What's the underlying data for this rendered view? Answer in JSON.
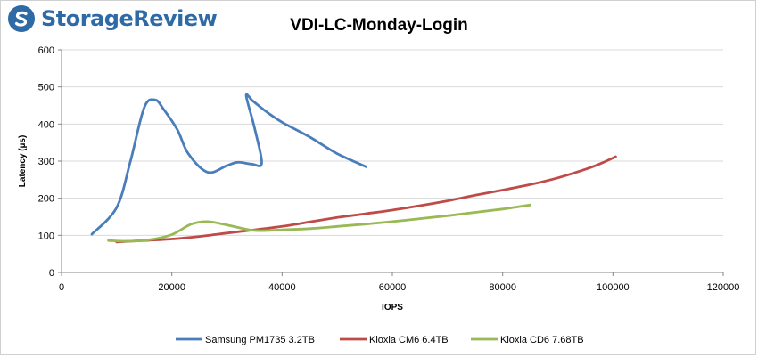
{
  "brand": {
    "name": "StorageReview",
    "icon": "storagereview-logo-icon",
    "color": "#2e6aa6"
  },
  "chart_data": {
    "type": "line",
    "title": "VDI-LC-Monday-Login",
    "xlabel": "IOPS",
    "ylabel": "Latency (µs)",
    "xlim": [
      0,
      120000
    ],
    "ylim": [
      0,
      600
    ],
    "x_ticks": [
      0,
      20000,
      40000,
      60000,
      80000,
      100000,
      120000
    ],
    "y_ticks": [
      0,
      100,
      200,
      300,
      400,
      500,
      600
    ],
    "grid": "horizontal",
    "legend_position": "bottom",
    "series": [
      {
        "name": "Samsung PM1735 3.2TB",
        "color": "#4a7ebb",
        "points": [
          [
            5500,
            103
          ],
          [
            10000,
            175
          ],
          [
            12500,
            300
          ],
          [
            15000,
            445
          ],
          [
            17000,
            465
          ],
          [
            18500,
            440
          ],
          [
            21000,
            385
          ],
          [
            23000,
            320
          ],
          [
            26500,
            270
          ],
          [
            30000,
            288
          ],
          [
            32000,
            297
          ],
          [
            34500,
            292
          ],
          [
            36300,
            295
          ],
          [
            35000,
            390
          ],
          [
            33500,
            476
          ],
          [
            34700,
            462
          ],
          [
            37000,
            435
          ],
          [
            40000,
            405
          ],
          [
            45000,
            365
          ],
          [
            50000,
            320
          ],
          [
            55200,
            285
          ]
        ]
      },
      {
        "name": "Kioxia CM6 6.4TB",
        "color": "#be4b48",
        "points": [
          [
            10000,
            82
          ],
          [
            15000,
            86
          ],
          [
            20000,
            90
          ],
          [
            25000,
            97
          ],
          [
            30000,
            106
          ],
          [
            35000,
            115
          ],
          [
            40000,
            124
          ],
          [
            45000,
            136
          ],
          [
            50000,
            148
          ],
          [
            55000,
            158
          ],
          [
            60000,
            168
          ],
          [
            65000,
            180
          ],
          [
            70000,
            193
          ],
          [
            75000,
            208
          ],
          [
            80000,
            222
          ],
          [
            85000,
            237
          ],
          [
            90000,
            255
          ],
          [
            95000,
            278
          ],
          [
            98000,
            295
          ],
          [
            100500,
            312
          ]
        ]
      },
      {
        "name": "Kioxia CD6 7.68TB",
        "color": "#98b954",
        "points": [
          [
            8500,
            86
          ],
          [
            12000,
            84
          ],
          [
            16000,
            88
          ],
          [
            20000,
            102
          ],
          [
            23500,
            130
          ],
          [
            26500,
            137
          ],
          [
            30000,
            128
          ],
          [
            35000,
            113
          ],
          [
            40000,
            115
          ],
          [
            45000,
            118
          ],
          [
            50000,
            124
          ],
          [
            55000,
            130
          ],
          [
            60000,
            137
          ],
          [
            65000,
            145
          ],
          [
            70000,
            153
          ],
          [
            75000,
            162
          ],
          [
            80000,
            171
          ],
          [
            85000,
            182
          ]
        ]
      }
    ]
  }
}
